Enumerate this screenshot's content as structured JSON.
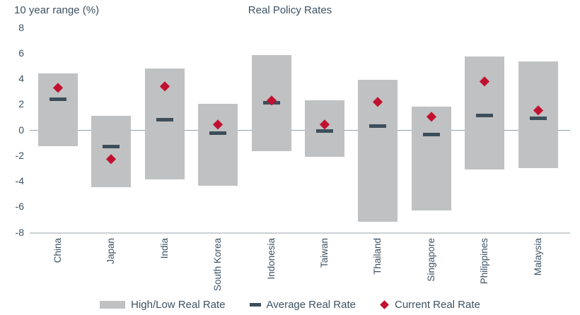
{
  "header": {
    "y_axis_title": "10 year range (%)",
    "title": "Real Policy Rates"
  },
  "chart_data": {
    "type": "bar",
    "subtype": "floating-range-bars-with-markers",
    "title": "Real Policy Rates",
    "ylabel": "10 year range (%)",
    "ylim": [
      -8,
      8
    ],
    "yticks": [
      8,
      6,
      4,
      2,
      0,
      -2,
      -4,
      -6,
      -8
    ],
    "grid": "zero-line-and-bottom-axis-only",
    "legend_position": "bottom-center",
    "categories": [
      "China",
      "Japan",
      "India",
      "South Korea",
      "Indonesia",
      "Taiwan",
      "Thailand",
      "Singapore",
      "Philippines",
      "Malaysia"
    ],
    "series": [
      {
        "name": "High/Low Real Rate",
        "marker": "range-bar",
        "high": [
          4.4,
          1.1,
          4.8,
          2.0,
          5.8,
          2.3,
          3.9,
          1.8,
          5.7,
          5.3
        ],
        "low": [
          -1.3,
          -4.5,
          -3.9,
          -4.4,
          -1.7,
          -2.1,
          -7.2,
          -6.3,
          -3.1,
          -3.0
        ]
      },
      {
        "name": "Average Real Rate",
        "marker": "dash",
        "values": [
          2.4,
          -1.3,
          0.8,
          -0.3,
          2.1,
          -0.1,
          0.3,
          -0.4,
          1.1,
          0.9
        ]
      },
      {
        "name": "Current Real Rate",
        "marker": "diamond",
        "values": [
          3.3,
          -2.3,
          3.4,
          0.4,
          2.3,
          0.4,
          2.2,
          1.0,
          3.8,
          1.5
        ]
      }
    ],
    "colors": {
      "bar": "#c0c1c2",
      "average_dash": "#3d4e5b",
      "current_diamond": "#c21130",
      "text": "#3d5263",
      "zero_line": "#92a1ac",
      "axis_line": "#ccd0d2"
    }
  },
  "legend": {
    "items": [
      {
        "label": "High/Low Real Rate",
        "swatch": "bar"
      },
      {
        "label": "Average Real Rate",
        "swatch": "dash"
      },
      {
        "label": "Current Real Rate",
        "swatch": "diamond"
      }
    ]
  }
}
